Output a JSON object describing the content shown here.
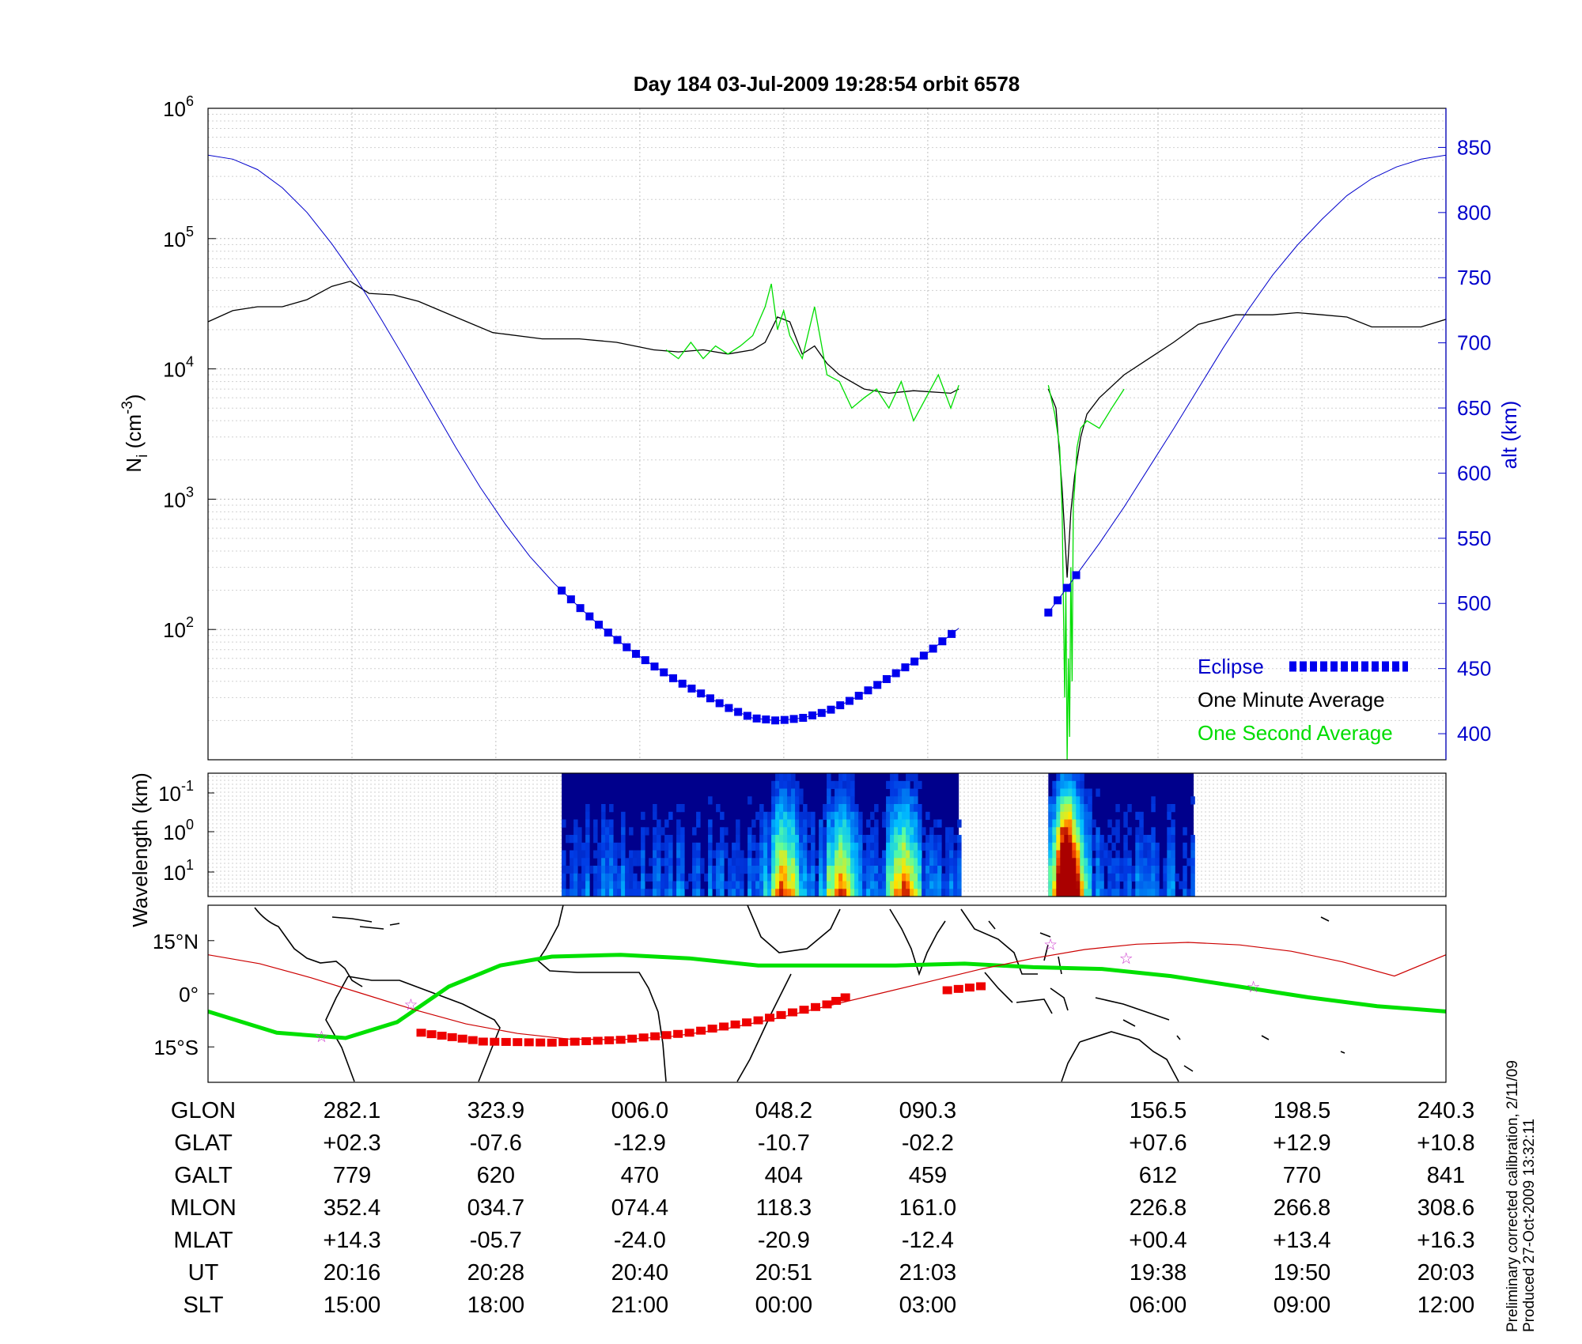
{
  "title": "Day 184  03-Jul-2009 19:28:54   orbit 6578",
  "colors": {
    "altitude": "#0000cc",
    "one_minute": "#000000",
    "one_second": "#00dd00",
    "eclipse": "#0000ee",
    "map_track": "#cc0000",
    "map_eclipse": "#ee0000",
    "magnetic_equator": "#00e000",
    "star_marker": "#cc33cc"
  },
  "chart_data": [
    {
      "type": "line",
      "panel": "density",
      "ylabel": "N_i (cm^-3)",
      "ylabel_base": "N",
      "ylabel_sub": "i",
      "ylabel_open": " (cm",
      "ylabel_sup": "-3",
      "ylabel_close": ")",
      "yscale": "log",
      "ylim": [
        10,
        1000000
      ],
      "y_ticks": [
        {
          "base": "10",
          "exp": "2",
          "value": 100
        },
        {
          "base": "10",
          "exp": "3",
          "value": 1000
        },
        {
          "base": "10",
          "exp": "4",
          "value": 10000
        },
        {
          "base": "10",
          "exp": "5",
          "value": 100000
        },
        {
          "base": "10",
          "exp": "6",
          "value": 1000000
        }
      ],
      "y2label": "alt (km)",
      "y2lim": [
        380,
        880
      ],
      "y2_ticks": [
        "400",
        "450",
        "500",
        "550",
        "600",
        "650",
        "700",
        "750",
        "800",
        "850"
      ],
      "xlim": [
        0,
        1
      ],
      "grid": true,
      "legend_position": "bottom-right",
      "legend": {
        "eclipse": "Eclipse",
        "one_minute": "One Minute Average",
        "one_second": "One Second Average"
      },
      "gaps": [
        [
          0.2853,
          0.2857
        ],
        [
          0.6065,
          0.6788
        ]
      ],
      "series": [
        {
          "name": "One Minute Average",
          "x": [
            0,
            0.02,
            0.04,
            0.06,
            0.08,
            0.1,
            0.115,
            0.13,
            0.15,
            0.17,
            0.2,
            0.23,
            0.27,
            0.3,
            0.33,
            0.36,
            0.38,
            0.4,
            0.42,
            0.44,
            0.45,
            0.46,
            0.47,
            0.48,
            0.49,
            0.5,
            0.51,
            0.53,
            0.55,
            0.57,
            0.6,
            0.6065
          ],
          "y": [
            23000,
            28000,
            30000,
            30000,
            34000,
            43000,
            47000,
            38000,
            37000,
            33000,
            25000,
            19000,
            17000,
            17000,
            16000,
            14000,
            13500,
            14000,
            13000,
            14000,
            16000,
            25000,
            23000,
            13000,
            15000,
            11000,
            9000,
            7000,
            6500,
            6800,
            6500,
            7000
          ]
        },
        {
          "name": "One Minute Average",
          "x": [
            0.6788,
            0.685,
            0.69,
            0.694,
            0.697,
            0.7,
            0.705,
            0.71,
            0.72,
            0.74,
            0.76,
            0.78,
            0.8,
            0.83,
            0.86,
            0.88,
            0.9,
            0.92,
            0.94,
            0.96,
            0.98,
            1.0
          ],
          "y": [
            7000,
            5000,
            1200,
            250,
            800,
            1500,
            3000,
            4500,
            6000,
            9000,
            12000,
            16000,
            22000,
            26000,
            26000,
            27000,
            26000,
            25000,
            21000,
            21000,
            21000,
            24000
          ]
        },
        {
          "name": "One Second Average",
          "x": [
            0.37,
            0.38,
            0.39,
            0.4,
            0.41,
            0.42,
            0.43,
            0.44,
            0.45,
            0.455,
            0.46,
            0.465,
            0.47,
            0.48,
            0.49,
            0.5,
            0.51,
            0.52,
            0.53,
            0.54,
            0.55,
            0.56,
            0.57,
            0.58,
            0.59,
            0.6,
            0.6065
          ],
          "y": [
            14000,
            12000,
            16000,
            12000,
            15000,
            13000,
            15000,
            18000,
            30000,
            45000,
            20000,
            28000,
            18000,
            12000,
            30000,
            9000,
            8000,
            5000,
            6000,
            7000,
            5000,
            8000,
            4000,
            6000,
            9000,
            5000,
            7500
          ]
        },
        {
          "name": "One Second Average",
          "x": [
            0.6788,
            0.684,
            0.688,
            0.69,
            0.692,
            0.693,
            0.694,
            0.695,
            0.696,
            0.697,
            0.698,
            0.699,
            0.7,
            0.702,
            0.705,
            0.71,
            0.72,
            0.73,
            0.74
          ],
          "y": [
            7500,
            4500,
            2500,
            800,
            30,
            200,
            10,
            60,
            15,
            300,
            40,
            900,
            1200,
            2500,
            3500,
            4000,
            3500,
            5000,
            7000
          ]
        },
        {
          "name": "alt (km)",
          "axis": "right",
          "x": [
            0,
            0.02,
            0.04,
            0.06,
            0.08,
            0.1,
            0.12,
            0.14,
            0.16,
            0.18,
            0.2,
            0.22,
            0.24,
            0.26,
            0.28,
            0.3,
            0.32,
            0.34,
            0.36,
            0.38,
            0.4,
            0.42,
            0.44,
            0.46,
            0.48,
            0.5,
            0.52,
            0.54,
            0.56,
            0.58,
            0.6,
            0.6065
          ],
          "y": [
            844,
            841,
            833,
            819,
            800,
            776,
            749,
            718,
            686,
            653,
            620,
            589,
            561,
            536,
            515,
            497,
            480,
            465,
            452,
            440,
            430,
            420,
            412,
            410,
            412,
            417,
            426,
            437,
            449,
            461,
            476,
            481
          ]
        },
        {
          "name": "alt (km)",
          "axis": "right",
          "x": [
            0.6788,
            0.69,
            0.7,
            0.72,
            0.74,
            0.76,
            0.78,
            0.8,
            0.82,
            0.84,
            0.86,
            0.88,
            0.9,
            0.92,
            0.94,
            0.96,
            0.98,
            1.0
          ],
          "y": [
            493,
            507,
            520,
            546,
            574,
            604,
            634,
            665,
            696,
            725,
            752,
            775,
            795,
            813,
            826,
            835,
            841,
            844
          ]
        }
      ],
      "eclipse_ranges": [
        [
          0.2857,
          0.6065
        ],
        [
          0.6788,
          0.7046
        ]
      ]
    },
    {
      "type": "heatmap",
      "panel": "spectrogram",
      "ylabel": "Wavelength (km)",
      "yscale": "log",
      "y_ticks": [
        {
          "base": "10",
          "exp": "-1"
        },
        {
          "base": "10",
          "exp": "0"
        },
        {
          "base": "10",
          "exp": "1"
        }
      ],
      "x_ranges": [
        [
          0.2857,
          0.6065
        ],
        [
          0.6788,
          0.7962
        ]
      ],
      "peaks": [
        0.465,
        0.51,
        0.56,
        0.69,
        0.695
      ]
    },
    {
      "type": "line",
      "panel": "map",
      "y_ticks": [
        "15°N",
        "0°",
        "15°S"
      ],
      "lat_range": [
        -25,
        25
      ],
      "lon_range": [
        -100,
        260
      ],
      "series": [
        {
          "name": "magnetic equator",
          "lon": [
            -100,
            -80,
            -60,
            -45,
            -30,
            -15,
            0,
            20,
            40,
            60,
            80,
            100,
            120,
            140,
            160,
            180,
            200,
            220,
            240,
            260
          ],
          "lat": [
            -5,
            -11,
            -12.5,
            -8,
            2,
            8,
            10.5,
            11,
            10,
            8,
            8,
            8,
            8.5,
            7.5,
            7,
            5,
            2,
            -1,
            -3.5,
            -5
          ]
        },
        {
          "name": "orbit track",
          "lon": [
            -100,
            -85,
            -70,
            -55,
            -40,
            -25,
            -10,
            5,
            20,
            35,
            50,
            65,
            80,
            95,
            110,
            125,
            140,
            155,
            170,
            185,
            200,
            215,
            230,
            245,
            260
          ],
          "lat": [
            11,
            8.5,
            4.5,
            0,
            -4.5,
            -8.5,
            -11.2,
            -12.8,
            -13,
            -12,
            -10,
            -7,
            -3.5,
            0,
            3.5,
            7,
            10,
            12.5,
            14,
            14.5,
            13.8,
            12,
            9,
            5,
            11
          ]
        }
      ],
      "eclipse_track": [
        {
          "lon": [
            -38,
            -20,
            0,
            20,
            40,
            60,
            80,
            88
          ],
          "lat": [
            -11,
            -13.5,
            -13.8,
            -13,
            -11,
            -7.5,
            -3,
            0
          ]
        },
        {
          "lon": [
            115,
            128
          ],
          "lat": [
            1,
            2.5
          ]
        }
      ],
      "stars": [
        {
          "lon": -67,
          "lat": -12
        },
        {
          "lon": -41,
          "lat": -3
        },
        {
          "lon": 145,
          "lat": 14
        },
        {
          "lon": 167,
          "lat": 10
        },
        {
          "lon": 204,
          "lat": 2
        }
      ]
    }
  ],
  "table": {
    "rows": [
      {
        "label": "GLON",
        "values": [
          "282.1",
          "323.9",
          "006.0",
          "048.2",
          "090.3",
          "156.5",
          "198.5",
          "240.3"
        ]
      },
      {
        "label": "GLAT",
        "values": [
          "+02.3",
          "-07.6",
          "-12.9",
          "-10.7",
          "-02.2",
          "+07.6",
          "+12.9",
          "+10.8"
        ]
      },
      {
        "label": "GALT",
        "values": [
          "779",
          "620",
          "470",
          "404",
          "459",
          "612",
          "770",
          "841"
        ]
      },
      {
        "label": "MLON",
        "values": [
          "352.4",
          "034.7",
          "074.4",
          "118.3",
          "161.0",
          "226.8",
          "266.8",
          "308.6"
        ]
      },
      {
        "label": "MLAT",
        "values": [
          "+14.3",
          "-05.7",
          "-24.0",
          "-20.9",
          "-12.4",
          "+00.4",
          "+13.4",
          "+16.3"
        ]
      },
      {
        "label": "UT",
        "values": [
          "20:16",
          "20:28",
          "20:40",
          "20:51",
          "21:03",
          "19:38",
          "19:50",
          "20:03"
        ]
      },
      {
        "label": "SLT",
        "values": [
          "15:00",
          "18:00",
          "21:00",
          "00:00",
          "03:00",
          "06:00",
          "09:00",
          "12:00"
        ]
      }
    ]
  },
  "footnote": {
    "line1": "Preliminary corrected calibration, 2/11/09",
    "line2": "Produced 27-Oct-2009 13:32:11"
  }
}
